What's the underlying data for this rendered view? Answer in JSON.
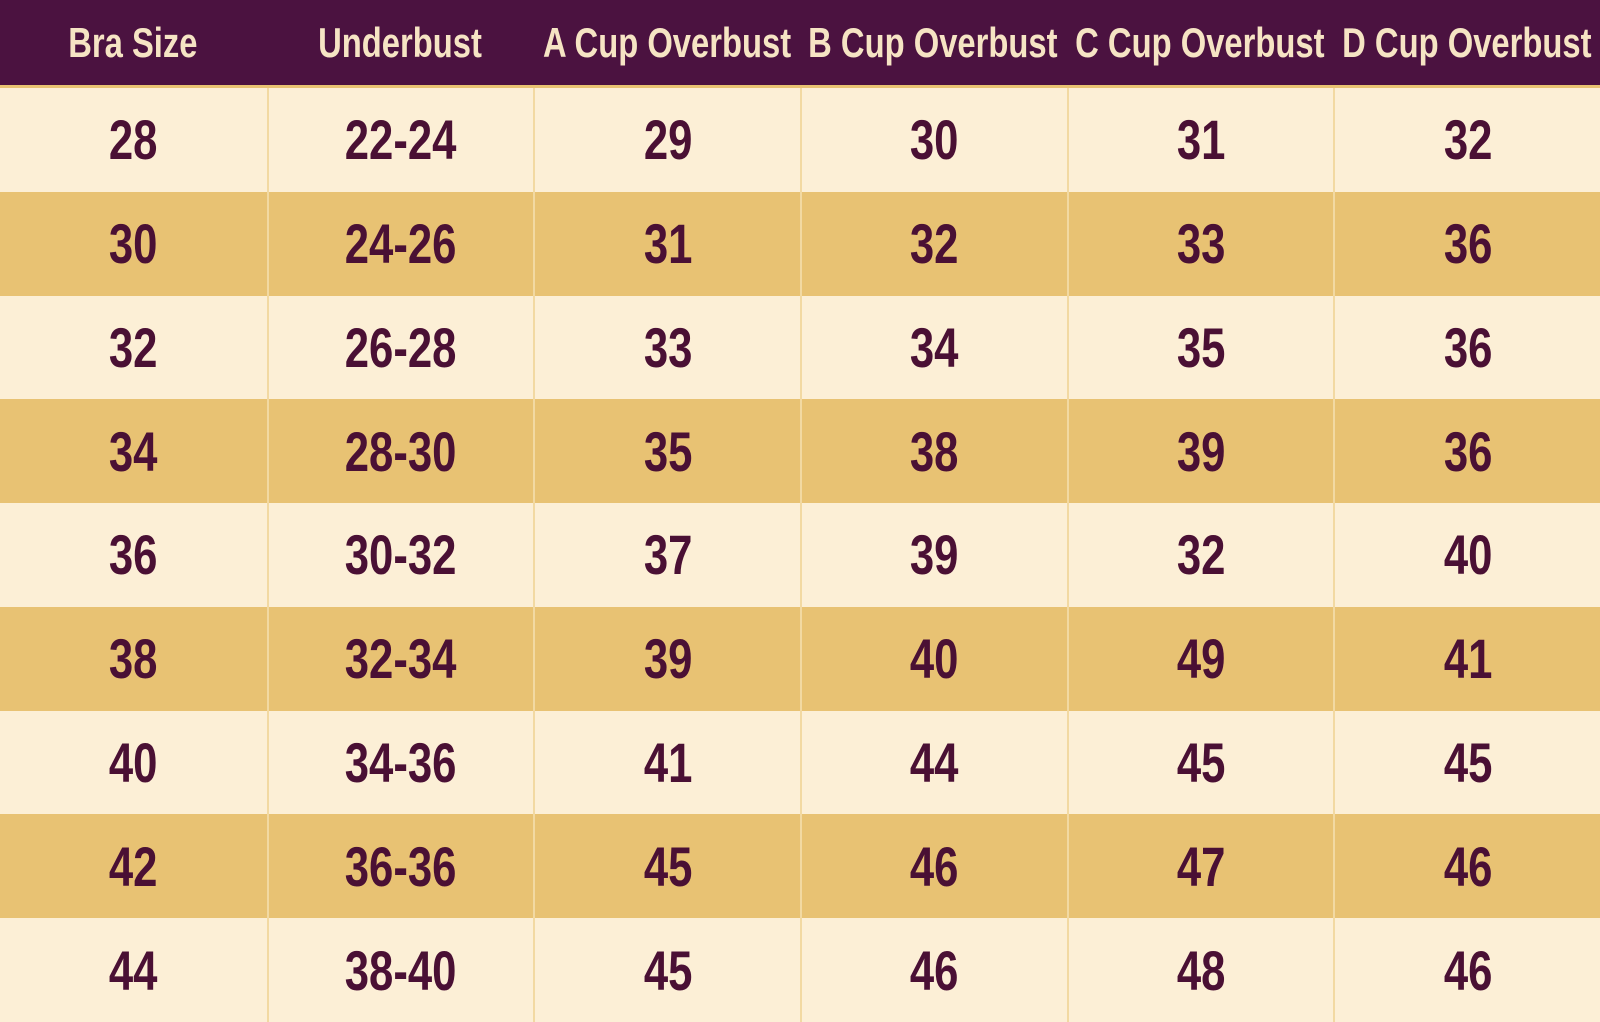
{
  "table": {
    "headers": [
      "Bra Size",
      "Underbust",
      "A Cup Overbust",
      "B Cup Overbust",
      "C Cup Overbust",
      "D Cup Overbust"
    ],
    "rows": [
      [
        "28",
        "22-24",
        "29",
        "30",
        "31",
        "32"
      ],
      [
        "30",
        "24-26",
        "31",
        "32",
        "33",
        "36"
      ],
      [
        "32",
        "26-28",
        "33",
        "34",
        "35",
        "36"
      ],
      [
        "34",
        "28-30",
        "35",
        "38",
        "39",
        "36"
      ],
      [
        "36",
        "30-32",
        "37",
        "39",
        "32",
        "40"
      ],
      [
        "38",
        "32-34",
        "39",
        "40",
        "49",
        "41"
      ],
      [
        "40",
        "34-36",
        "41",
        "44",
        "45",
        "45"
      ],
      [
        "42",
        "36-36",
        "45",
        "46",
        "47",
        "46"
      ],
      [
        "44",
        "38-40",
        "45",
        "46",
        "48",
        "46"
      ]
    ]
  }
}
